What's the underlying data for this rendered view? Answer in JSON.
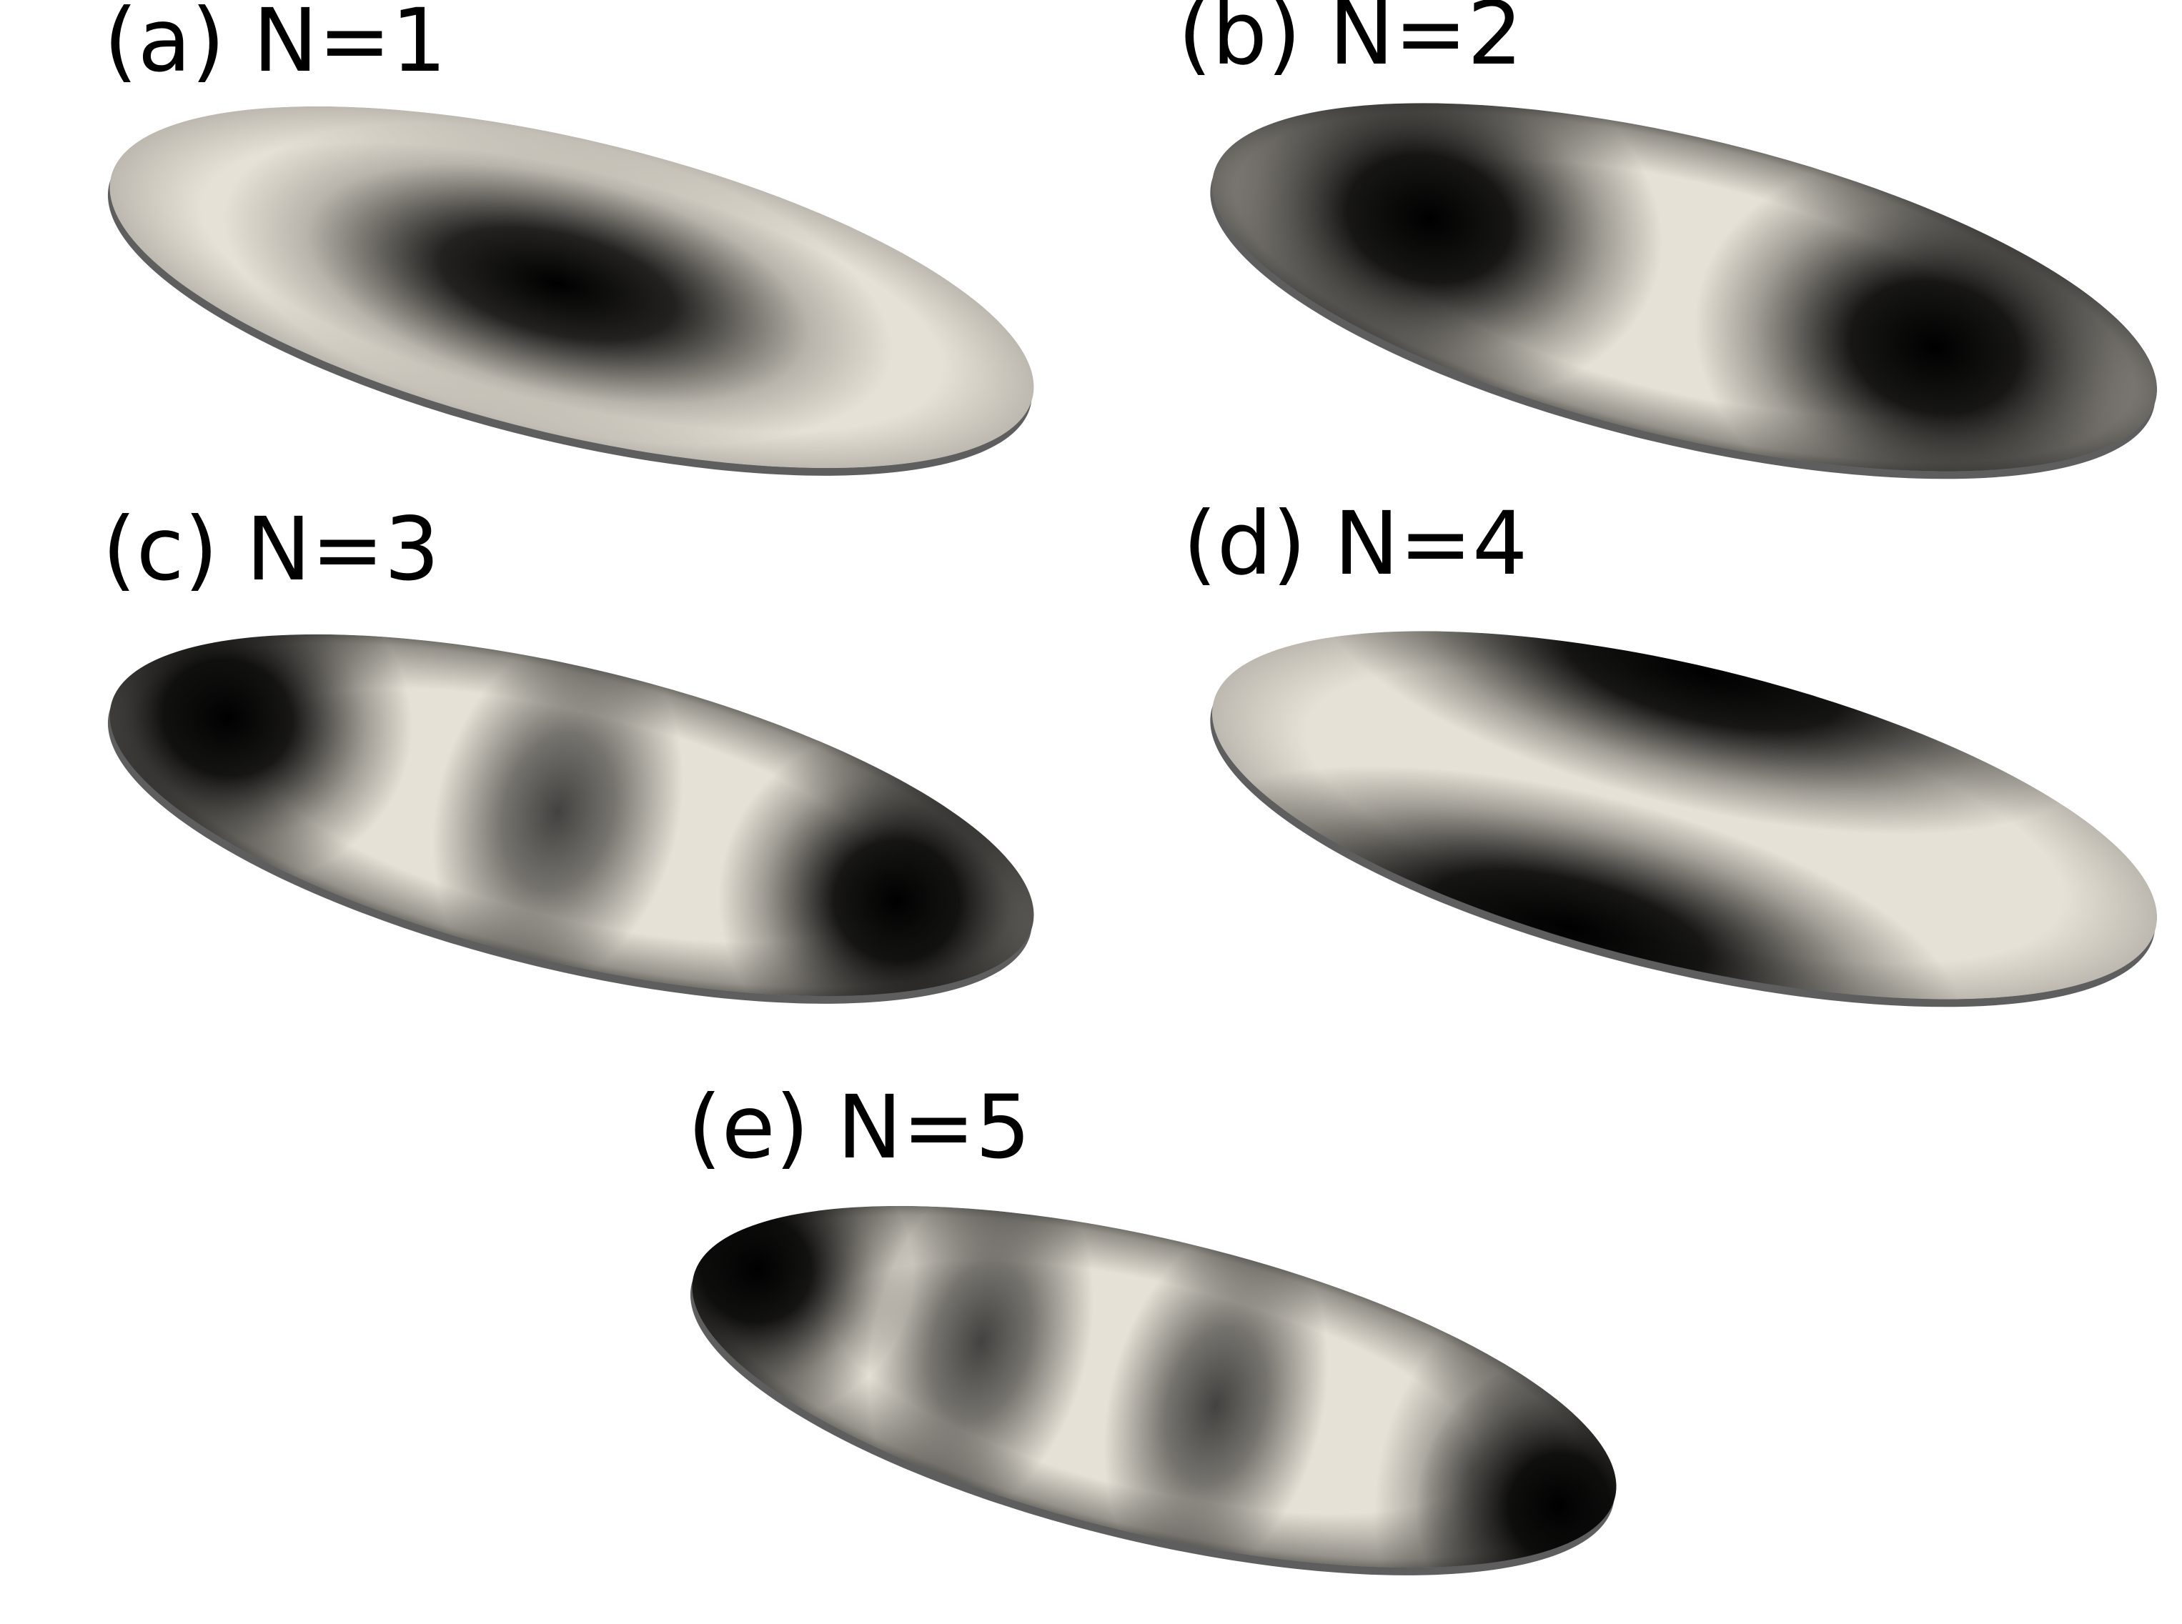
{
  "panels": [
    {
      "id": "a",
      "label": "(a) N=1",
      "n": 1
    },
    {
      "id": "b",
      "label": "(b) N=2",
      "n": 2
    },
    {
      "id": "c",
      "label": "(c) N=3",
      "n": 3
    },
    {
      "id": "d",
      "label": "(d) N=4",
      "n": 4
    },
    {
      "id": "e",
      "label": "(e) N=5",
      "n": 5
    }
  ],
  "colors": {
    "light": "#e6e1d6",
    "dark": "#000000",
    "edge": "#5a5a5a",
    "background": "#ffffff"
  }
}
